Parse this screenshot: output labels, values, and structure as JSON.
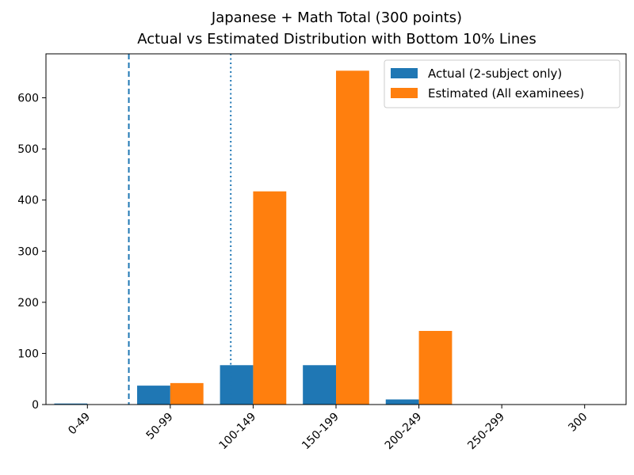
{
  "chart_data": {
    "type": "bar",
    "title": "Japanese + Math Total (300 points)",
    "subtitle": "Actual vs Estimated Distribution with Bottom 10% Lines",
    "xlabel": "",
    "ylabel": "",
    "categories": [
      "0-49",
      "50-99",
      "100-149",
      "150-199",
      "200-249",
      "250-299",
      "300"
    ],
    "series": [
      {
        "name": "Actual (2-subject only)",
        "color": "#1f77b4",
        "values": [
          2,
          37,
          77,
          77,
          10,
          0,
          0
        ]
      },
      {
        "name": "Estimated (All examinees)",
        "color": "#ff7f0e",
        "values": [
          0,
          42,
          417,
          653,
          144,
          0,
          0
        ]
      }
    ],
    "ylim": [
      0,
      686
    ],
    "yticks": [
      0,
      100,
      200,
      300,
      400,
      500,
      600
    ],
    "grid": false,
    "legend_position": "top-right",
    "reference_lines": [
      {
        "style": "dashed",
        "x": 50,
        "color": "#1f77b4"
      },
      {
        "style": "dotted",
        "x": 111.5,
        "color": "#1f77b4"
      }
    ]
  }
}
